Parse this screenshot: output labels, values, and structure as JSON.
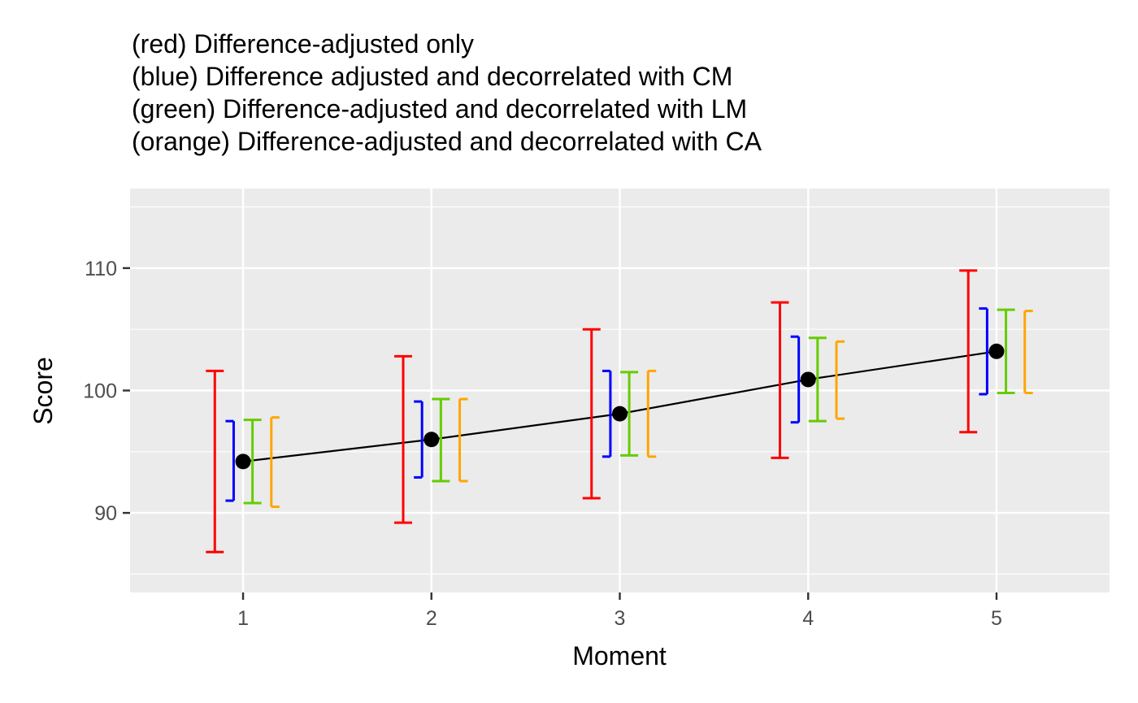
{
  "chart_data": {
    "type": "scatter",
    "title_lines": [
      "(red) Difference-adjusted only",
      "(blue) Difference adjusted and decorrelated with CM",
      "(green) Difference-adjusted and decorrelated with LM",
      "(orange) Difference-adjusted and decorrelated with CA"
    ],
    "xlabel": "Moment",
    "ylabel": "Score",
    "x_ticks": [
      "1",
      "2",
      "3",
      "4",
      "5"
    ],
    "y_ticks": [
      "90",
      "100",
      "110"
    ],
    "y_tick_values": [
      90,
      100,
      110
    ],
    "xlim": [
      0.4,
      5.6
    ],
    "ylim": [
      83.5,
      116.5
    ],
    "grid": true,
    "x": [
      1,
      2,
      3,
      4,
      5
    ],
    "means": [
      94.2,
      96.0,
      98.1,
      100.9,
      103.2
    ],
    "intervals": [
      {
        "color": "#ff0000",
        "style": "errorbar",
        "offset": -0.15,
        "lower": [
          86.8,
          89.2,
          91.2,
          94.5,
          96.6
        ],
        "upper": [
          101.6,
          102.8,
          105.0,
          107.2,
          109.8
        ]
      },
      {
        "color": "#0000ff",
        "style": "left-bracket",
        "offset": -0.05,
        "lower": [
          91.0,
          92.9,
          94.6,
          97.4,
          99.7
        ],
        "upper": [
          97.5,
          99.1,
          101.6,
          104.4,
          106.7
        ]
      },
      {
        "color": "#66cc00",
        "style": "errorbar",
        "offset": 0.05,
        "lower": [
          90.8,
          92.6,
          94.7,
          97.5,
          99.8
        ],
        "upper": [
          97.6,
          99.3,
          101.5,
          104.3,
          106.6
        ]
      },
      {
        "color": "#ffa500",
        "style": "right-bracket",
        "offset": 0.15,
        "lower": [
          90.5,
          92.6,
          94.6,
          97.7,
          99.8
        ],
        "upper": [
          97.8,
          99.3,
          101.6,
          104.0,
          106.5
        ]
      }
    ]
  }
}
